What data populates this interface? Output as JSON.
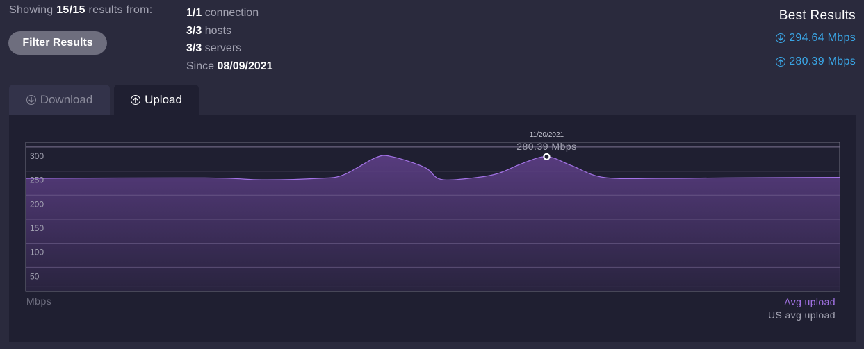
{
  "summary": {
    "showing_prefix": "Showing",
    "showing_count": "15/15",
    "showing_suffix": "results from:",
    "filter_button": "Filter Results"
  },
  "stats": [
    {
      "value": "1/1",
      "label": "connection"
    },
    {
      "value": "3/3",
      "label": "hosts"
    },
    {
      "value": "3/3",
      "label": "servers"
    },
    {
      "label": "Since",
      "value": "08/09/2021"
    }
  ],
  "best_results": {
    "title": "Best Results",
    "download": "294.64 Mbps",
    "upload": "280.39 Mbps",
    "download_icon": "arrow-down-circle-icon",
    "upload_icon": "arrow-up-circle-icon",
    "accent_color": "#3aa6e6"
  },
  "tabs": [
    {
      "label": "Download",
      "icon": "arrow-down-circle-icon",
      "active": false
    },
    {
      "label": "Upload",
      "icon": "arrow-up-circle-icon",
      "active": true
    }
  ],
  "chart_data": {
    "type": "area",
    "ylabel": "Mbps",
    "ylim": [
      0,
      310
    ],
    "yticks": [
      50,
      100,
      150,
      200,
      250,
      300
    ],
    "grid": true,
    "series": [
      {
        "name": "Avg upload",
        "color": "#a373e6",
        "values": [
          [
            0,
            235
          ],
          [
            0.22,
            236
          ],
          [
            0.29,
            232
          ],
          [
            0.36,
            235
          ],
          [
            0.39,
            242
          ],
          [
            0.43,
            278
          ],
          [
            0.45,
            280
          ],
          [
            0.49,
            258
          ],
          [
            0.51,
            233
          ],
          [
            0.55,
            236
          ],
          [
            0.58,
            245
          ],
          [
            0.61,
            266
          ],
          [
            0.64,
            280
          ],
          [
            0.67,
            262
          ],
          [
            0.71,
            237
          ],
          [
            0.78,
            235
          ],
          [
            0.86,
            236
          ],
          [
            1,
            237
          ]
        ]
      }
    ],
    "tooltip": {
      "date": "11/20/2021",
      "value": "280.39 Mbps",
      "x": 0.64,
      "y": 280
    },
    "legend": {
      "avg_label": "Avg upload",
      "us_label": "US avg upload",
      "position": "bottom-right"
    }
  }
}
